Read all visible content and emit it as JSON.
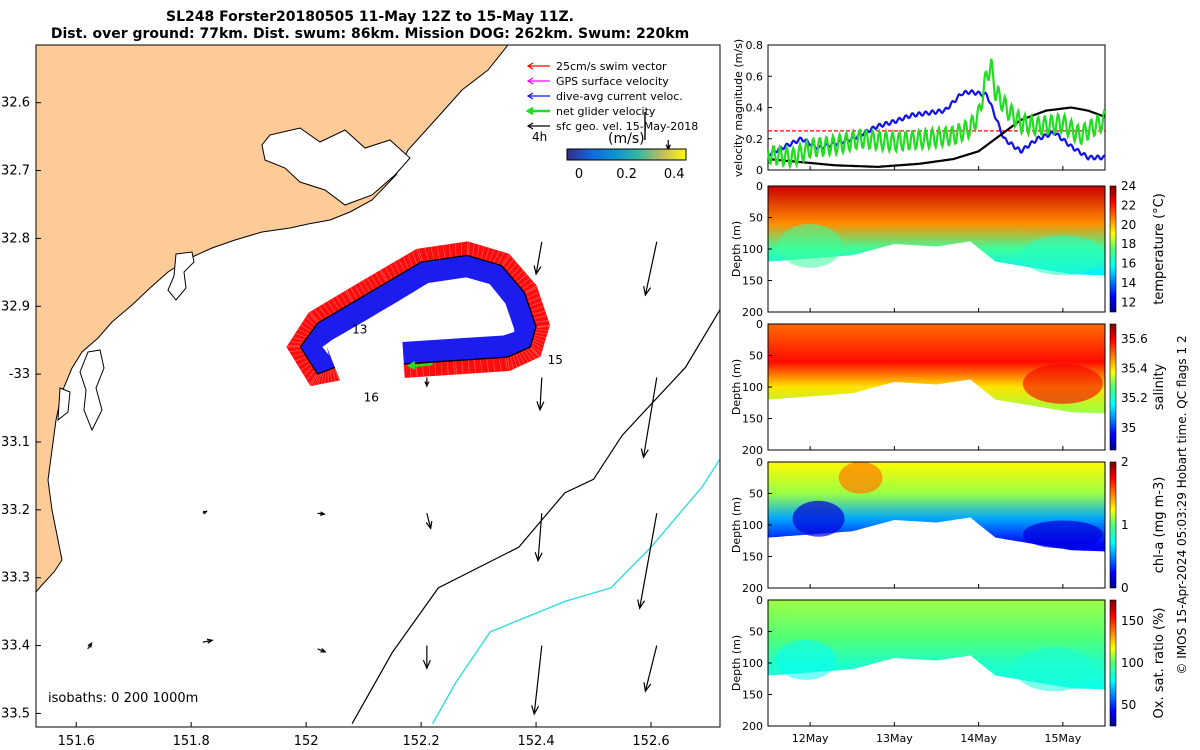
{
  "header": {
    "title_line1": "SL248 Forster20180505 11-May 12Z to 15-May 11Z.",
    "title_line2": "Dist. over ground: 77km. Dist. swum: 86km. Mission DOG: 262km. Swum: 220km"
  },
  "colors": {
    "land": "#fccb98",
    "swim": "#ff0000",
    "gps": "#ff00ff",
    "dive_avg": "#1010ee",
    "net": "#22dd22",
    "geo": "#000000",
    "iso1000": "#33dddd"
  },
  "chart_data": [
    {
      "type": "map",
      "name": "glider-track-map",
      "xlim": [
        151.53,
        152.72
      ],
      "ylim": [
        32.515,
        33.52
      ],
      "x_ticks": [
        151.6,
        151.8,
        152,
        152.2,
        152.4,
        152.6
      ],
      "x_tick_labels": [
        "151.6",
        "151.8",
        "152",
        "152.2",
        "152.4",
        "152.6"
      ],
      "y_ticks": [
        32.6,
        32.7,
        32.8,
        32.9,
        33.0,
        33.1,
        33.2,
        33.3,
        33.4,
        33.5
      ],
      "y_tick_labels": [
        "32.6",
        "32.7",
        "32.8",
        "32.9",
        "-33",
        "33.1",
        "33.2",
        "33.3",
        "33.4",
        "33.5"
      ],
      "legend": [
        {
          "label": "25cm/s swim vector",
          "color": "#ff0000"
        },
        {
          "label": "GPS surface velocity",
          "color": "#ff00ff"
        },
        {
          "label": "dive-avg current veloc.",
          "color": "#1010ee"
        },
        {
          "label": "net glider velocity",
          "color": "#22dd22"
        },
        {
          "label": "sfc geo. vel. 15-May-2018",
          "color": "#000000"
        }
      ],
      "legend_time_label": "4h",
      "colorbar": {
        "label": "(m/s)",
        "ticks": [
          0,
          0.2,
          0.4
        ],
        "tick_labels": [
          "0",
          "0.2",
          "0.4"
        ],
        "range": [
          0,
          0.5
        ]
      },
      "isobath_label": "isobaths: 0   200  1000m",
      "day_labels": [
        {
          "text": "13",
          "lon": 152.08,
          "lat": 32.94
        },
        {
          "text": "15",
          "lon": 152.42,
          "lat": 32.985
        },
        {
          "text": "16",
          "lon": 152.1,
          "lat": 33.04
        }
      ],
      "track": [
        [
          152.17,
          32.985
        ],
        [
          152.26,
          32.98
        ],
        [
          152.35,
          32.975
        ],
        [
          152.39,
          32.96
        ],
        [
          152.4,
          32.93
        ],
        [
          152.38,
          32.88
        ],
        [
          152.34,
          32.84
        ],
        [
          152.28,
          32.825
        ],
        [
          152.2,
          32.835
        ],
        [
          152.14,
          32.865
        ],
        [
          152.08,
          32.895
        ],
        [
          152.02,
          32.925
        ],
        [
          151.99,
          32.96
        ],
        [
          152.02,
          33.0
        ],
        [
          152.05,
          32.99
        ]
      ],
      "geo_arrows": [
        {
          "lon": 151.62,
          "lat": 33.405,
          "u": 0.02,
          "v": -0.03
        },
        {
          "lon": 151.82,
          "lat": 33.395,
          "u": 0.05,
          "v": -0.01
        },
        {
          "lon": 152.02,
          "lat": 33.405,
          "u": 0.04,
          "v": 0.015
        },
        {
          "lon": 151.82,
          "lat": 33.205,
          "u": 0.02,
          "v": -0.01
        },
        {
          "lon": 152.02,
          "lat": 33.205,
          "u": 0.035,
          "v": 0.005
        },
        {
          "lon": 152.21,
          "lat": 33.205,
          "u": 0.02,
          "v": 0.08
        },
        {
          "lon": 152.21,
          "lat": 33.005,
          "u": 0.0,
          "v": 0.045
        },
        {
          "lon": 152.21,
          "lat": 33.4,
          "u": 0.0,
          "v": 0.12
        },
        {
          "lon": 152.41,
          "lat": 33.205,
          "u": -0.02,
          "v": 0.25
        },
        {
          "lon": 152.41,
          "lat": 33.005,
          "u": -0.01,
          "v": 0.17
        },
        {
          "lon": 152.41,
          "lat": 32.805,
          "u": -0.03,
          "v": 0.17
        },
        {
          "lon": 152.41,
          "lat": 33.4,
          "u": -0.04,
          "v": 0.36
        },
        {
          "lon": 152.61,
          "lat": 32.805,
          "u": -0.06,
          "v": 0.28
        },
        {
          "lon": 152.61,
          "lat": 33.005,
          "u": -0.07,
          "v": 0.42
        },
        {
          "lon": 152.61,
          "lat": 33.205,
          "u": -0.09,
          "v": 0.5
        },
        {
          "lon": 152.61,
          "lat": 33.4,
          "u": -0.06,
          "v": 0.24
        },
        {
          "lon": 152.63,
          "lat": 32.655,
          "u": 0.0,
          "v": 0.05
        }
      ],
      "isobath_200": [
        [
          152.72,
          32.905
        ],
        [
          152.66,
          32.99
        ],
        [
          152.55,
          33.09
        ],
        [
          152.5,
          33.155
        ],
        [
          152.45,
          33.175
        ],
        [
          152.37,
          33.255
        ],
        [
          152.23,
          33.315
        ],
        [
          152.15,
          33.41
        ],
        [
          152.08,
          33.515
        ]
      ],
      "isobath_1000": [
        [
          152.72,
          33.125
        ],
        [
          152.69,
          33.165
        ],
        [
          152.65,
          33.205
        ],
        [
          152.6,
          33.255
        ],
        [
          152.53,
          33.315
        ],
        [
          152.45,
          33.335
        ],
        [
          152.32,
          33.38
        ],
        [
          152.26,
          33.455
        ],
        [
          152.22,
          33.515
        ]
      ]
    },
    {
      "type": "line",
      "name": "velocity-magnitude",
      "xlabel": "",
      "ylabel": "velocity magnitude (m/s)",
      "xlim": [
        11.5,
        15.5
      ],
      "ylim": [
        0,
        0.8
      ],
      "y_ticks": [
        0,
        0.2,
        0.4,
        0.6,
        0.8
      ],
      "y_tick_labels": [
        "0",
        "0.2",
        "0.4",
        "0.6",
        "0.8"
      ],
      "series": [
        {
          "name": "25cm/s swim vector",
          "color": "#ff0000",
          "x": [
            11.5,
            15.5
          ],
          "y": [
            0.25,
            0.25
          ]
        },
        {
          "name": "dive-avg current veloc.",
          "color": "#1010ee",
          "x": [
            11.5,
            11.9,
            12.1,
            12.5,
            12.8,
            13.0,
            13.2,
            13.6,
            13.8,
            13.9,
            14.1,
            14.15,
            14.3,
            14.5,
            14.7,
            14.9,
            15.1,
            15.3,
            15.5
          ],
          "y": [
            0.1,
            0.2,
            0.14,
            0.2,
            0.28,
            0.31,
            0.35,
            0.38,
            0.49,
            0.5,
            0.48,
            0.41,
            0.2,
            0.12,
            0.2,
            0.24,
            0.15,
            0.08,
            0.08
          ]
        },
        {
          "name": "sfc geo. vel. 15-May-2018",
          "color": "#000000",
          "x": [
            11.5,
            11.9,
            12.3,
            12.8,
            13.3,
            13.7,
            14.0,
            14.2,
            14.5,
            14.8,
            15.1,
            15.3,
            15.5
          ],
          "y": [
            0.07,
            0.05,
            0.03,
            0.02,
            0.04,
            0.07,
            0.12,
            0.2,
            0.32,
            0.38,
            0.4,
            0.38,
            0.34
          ]
        },
        {
          "name": "net glider velocity",
          "color": "#22dd22",
          "x": [
            11.5,
            11.8,
            12.0,
            12.3,
            12.6,
            13.0,
            13.4,
            13.7,
            13.9,
            14.0,
            14.1,
            14.15,
            14.2,
            14.35,
            14.5,
            14.7,
            15.0,
            15.2,
            15.5
          ],
          "y": [
            0.1,
            0.08,
            0.14,
            0.16,
            0.2,
            0.18,
            0.2,
            0.22,
            0.27,
            0.35,
            0.62,
            0.66,
            0.5,
            0.38,
            0.3,
            0.28,
            0.3,
            0.22,
            0.32
          ]
        }
      ]
    },
    {
      "type": "heatmap",
      "name": "temperature-section",
      "ylabel": "Depth (m)",
      "ylim": [
        200,
        0
      ],
      "y_ticks": [
        0,
        50,
        100,
        150,
        200
      ],
      "x_ticks": [
        12,
        13,
        14,
        15
      ],
      "colorbar": {
        "label": "temperature (°C)",
        "range": [
          11,
          24
        ],
        "ticks": [
          12,
          14,
          16,
          18,
          20,
          22,
          24
        ],
        "tick_labels": [
          "12",
          "14",
          "16",
          "18",
          "20",
          "22",
          "24"
        ]
      },
      "bottom_depth": [
        [
          11.5,
          120
        ],
        [
          12.5,
          110
        ],
        [
          13.0,
          92
        ],
        [
          13.5,
          96
        ],
        [
          13.9,
          88
        ],
        [
          14.2,
          120
        ],
        [
          15.1,
          140
        ],
        [
          15.5,
          142
        ]
      ],
      "layers": [
        [
          0,
          23.0
        ],
        [
          60,
          20.5
        ],
        [
          100,
          17.0
        ],
        [
          140,
          15.5
        ]
      ]
    },
    {
      "type": "heatmap",
      "name": "salinity-section",
      "ylabel": "Depth (m)",
      "ylim": [
        200,
        0
      ],
      "y_ticks": [
        0,
        50,
        100,
        150,
        200
      ],
      "x_ticks": [
        12,
        13,
        14,
        15
      ],
      "colorbar": {
        "label": "salinity",
        "range": [
          34.85,
          35.7
        ],
        "ticks": [
          35,
          35.2,
          35.4,
          35.6
        ],
        "tick_labels": [
          "35",
          "35.2",
          "35.4",
          "35.6"
        ]
      },
      "bottom_depth": [
        [
          11.5,
          120
        ],
        [
          12.5,
          110
        ],
        [
          13.0,
          92
        ],
        [
          13.5,
          96
        ],
        [
          13.9,
          88
        ],
        [
          14.2,
          120
        ],
        [
          15.1,
          140
        ],
        [
          15.5,
          142
        ]
      ],
      "layers": [
        [
          0,
          35.5
        ],
        [
          60,
          35.58
        ],
        [
          100,
          35.4
        ],
        [
          140,
          35.32
        ]
      ]
    },
    {
      "type": "heatmap",
      "name": "chlorophyll-section",
      "ylabel": "Depth (m)",
      "ylim": [
        200,
        0
      ],
      "y_ticks": [
        0,
        50,
        100,
        150,
        200
      ],
      "x_ticks": [
        12,
        13,
        14,
        15
      ],
      "colorbar": {
        "label": "chl-a (mg m-3)",
        "range": [
          0,
          2
        ],
        "ticks": [
          0,
          1,
          2
        ],
        "tick_labels": [
          "0",
          "1",
          "2"
        ]
      },
      "bottom_depth": [
        [
          11.5,
          120
        ],
        [
          12.5,
          110
        ],
        [
          13.0,
          92
        ],
        [
          13.5,
          96
        ],
        [
          13.9,
          88
        ],
        [
          14.2,
          120
        ],
        [
          15.1,
          140
        ],
        [
          15.5,
          142
        ]
      ],
      "layers": [
        [
          0,
          1.25
        ],
        [
          50,
          1.1
        ],
        [
          90,
          0.55
        ],
        [
          130,
          0.25
        ]
      ]
    },
    {
      "type": "heatmap",
      "name": "oxygen-saturation-section",
      "ylabel": "Depth (m)",
      "xlabel_ticks": [
        "12May",
        "13May",
        "14May",
        "15May"
      ],
      "ylim": [
        200,
        0
      ],
      "y_ticks": [
        0,
        50,
        100,
        150,
        200
      ],
      "x_ticks": [
        12,
        13,
        14,
        15
      ],
      "colorbar": {
        "label": "Ox. sat. ratio (%)",
        "range": [
          25,
          175
        ],
        "ticks": [
          50,
          100,
          150
        ],
        "tick_labels": [
          "50",
          "100",
          "150"
        ]
      },
      "bottom_depth": [
        [
          11.5,
          120
        ],
        [
          12.5,
          110
        ],
        [
          13.0,
          92
        ],
        [
          13.5,
          96
        ],
        [
          13.9,
          88
        ],
        [
          14.2,
          120
        ],
        [
          15.1,
          140
        ],
        [
          15.5,
          142
        ]
      ],
      "layers": [
        [
          0,
          108
        ],
        [
          60,
          100
        ],
        [
          100,
          88
        ],
        [
          140,
          82
        ]
      ]
    }
  ],
  "footer": {
    "credit": "© IMOS 15-Apr-2024 05:03:29 Hobart time. QC flags 1  2"
  }
}
